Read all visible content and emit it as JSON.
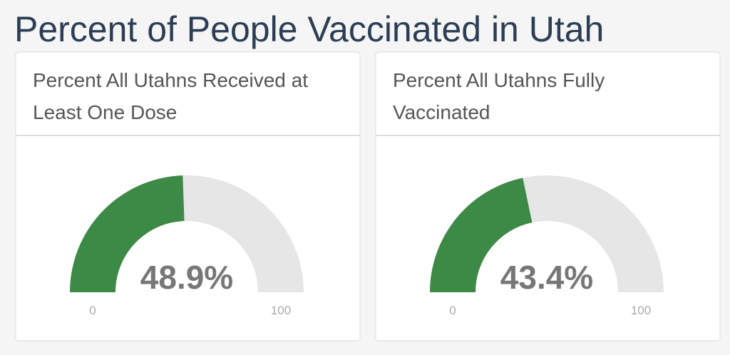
{
  "header": {
    "title": "Percent of People Vaccinated in Utah"
  },
  "chart_data": [
    {
      "type": "gauge",
      "title": [
        "Percent All Utahns Received at",
        "Least One Dose"
      ],
      "values": [
        48.9
      ],
      "value_labels": [
        "48.9%"
      ],
      "ylim": [
        0,
        100
      ],
      "yticks": [
        0,
        100
      ],
      "color": "#3d8a47",
      "track_color": "#e6e6e6"
    },
    {
      "type": "gauge",
      "title": [
        "Percent All Utahns Fully",
        "Vaccinated"
      ],
      "values": [
        43.4
      ],
      "value_labels": [
        "43.4%"
      ],
      "ylim": [
        0,
        100
      ],
      "yticks": [
        0,
        100
      ],
      "color": "#3d8a47",
      "track_color": "#e6e6e6"
    }
  ]
}
